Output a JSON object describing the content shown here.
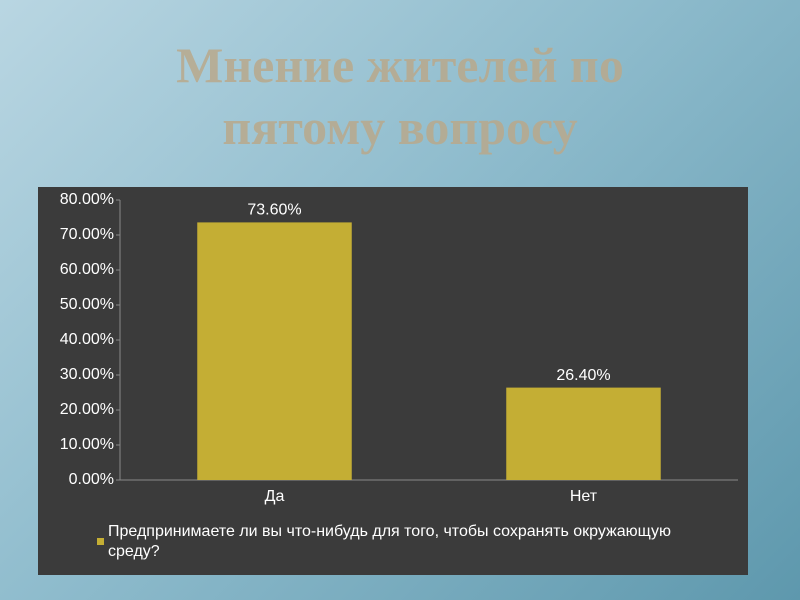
{
  "chart_data": {
    "type": "bar",
    "title": "Мнение жителей по пятому вопросу",
    "categories": [
      "Да",
      "Нет"
    ],
    "series": [
      {
        "name": "Предпринимаете ли вы что-нибудь для того, чтобы сохранять окружающую среду?",
        "color": "#c4ae34",
        "values": [
          73.6,
          26.4
        ],
        "value_labels": [
          "73.60%",
          "26.40%"
        ]
      }
    ],
    "ylim": [
      0,
      80
    ],
    "yticks": [
      {
        "value": 0,
        "label": "0.00%"
      },
      {
        "value": 10,
        "label": "10.00%"
      },
      {
        "value": 20,
        "label": "20.00%"
      },
      {
        "value": 30,
        "label": "30.00%"
      },
      {
        "value": 40,
        "label": "40.00%"
      },
      {
        "value": 50,
        "label": "50.00%"
      },
      {
        "value": 60,
        "label": "60.00%"
      },
      {
        "value": 70,
        "label": "70.00%"
      },
      {
        "value": 80,
        "label": "80.00%"
      }
    ],
    "grid": false,
    "legend": "bottom"
  }
}
